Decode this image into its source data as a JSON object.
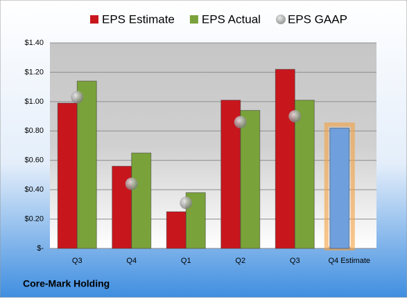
{
  "chart_data": {
    "type": "bar",
    "title": "Core-Mark Holding",
    "categories": [
      "Q3",
      "Q4",
      "Q1",
      "Q2",
      "Q3",
      "Q4 Estimate"
    ],
    "series": [
      {
        "name": "EPS Estimate",
        "color": "#c8161d",
        "colors": [
          "#c8161d",
          "#c8161d",
          "#c8161d",
          "#c8161d",
          "#c8161d",
          "#6f9fdc"
        ],
        "values": [
          0.99,
          0.56,
          0.25,
          1.01,
          1.22,
          0.82
        ]
      },
      {
        "name": "EPS Actual",
        "color": "#7aa23a",
        "values": [
          1.14,
          0.65,
          0.38,
          0.94,
          1.01,
          null
        ]
      },
      {
        "name": "EPS GAAP",
        "type": "scatter",
        "color": "#9a9a9a",
        "values": [
          1.03,
          0.44,
          0.31,
          0.86,
          0.9,
          null
        ]
      }
    ],
    "ylim": [
      0,
      1.4
    ],
    "yticks": [
      {
        "value": 0,
        "label": "$-"
      },
      {
        "value": 0.2,
        "label": "$0.20"
      },
      {
        "value": 0.4,
        "label": "$0.40"
      },
      {
        "value": 0.6,
        "label": "$0.60"
      },
      {
        "value": 0.8,
        "label": "$0.80"
      },
      {
        "value": 1.0,
        "label": "$1.00"
      },
      {
        "value": 1.2,
        "label": "$1.20"
      },
      {
        "value": 1.4,
        "label": "$1.40"
      }
    ],
    "grid": true,
    "legend": "top"
  }
}
